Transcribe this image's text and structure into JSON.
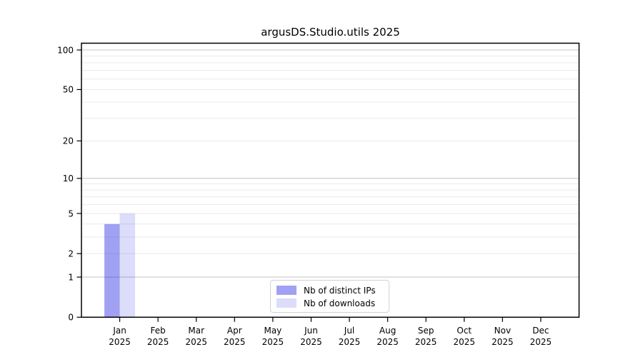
{
  "figure": {
    "background": "#ffffff"
  },
  "chart_data": {
    "type": "bar",
    "title": "argusDS.Studio.utils 2025",
    "categories": [
      "Jan",
      "Feb",
      "Mar",
      "Apr",
      "May",
      "Jun",
      "Jul",
      "Aug",
      "Sep",
      "Oct",
      "Nov",
      "Dec"
    ],
    "category_year": "2025",
    "series": [
      {
        "name": "Nb of distinct IPs",
        "color": "rgba(20,20,225,0.40)",
        "values": [
          4,
          0,
          0,
          0,
          0,
          0,
          0,
          0,
          0,
          0,
          0,
          0
        ]
      },
      {
        "name": "Nb of downloads",
        "color": "rgba(20,20,225,0.15)",
        "values": [
          5,
          0,
          0,
          0,
          0,
          0,
          0,
          0,
          0,
          0,
          0,
          0
        ]
      }
    ],
    "y_axis": {
      "scale": "log1p",
      "range": [
        0,
        100
      ],
      "tick_values": [
        0,
        1,
        2,
        5,
        10,
        20,
        50,
        100
      ],
      "major_gridlines": [
        1,
        10,
        100
      ],
      "minor_gridlines": [
        2,
        3,
        4,
        5,
        6,
        7,
        8,
        9,
        20,
        30,
        40,
        50,
        60,
        70,
        80,
        90
      ]
    },
    "legend": {
      "position": "lower center"
    },
    "grid": true
  },
  "colors": {
    "axis": "#000000",
    "tick_label": "#000000",
    "major_grid": "#c9c9c9",
    "minor_grid": "#eaeaea",
    "legend_border": "#d2d2d2"
  }
}
